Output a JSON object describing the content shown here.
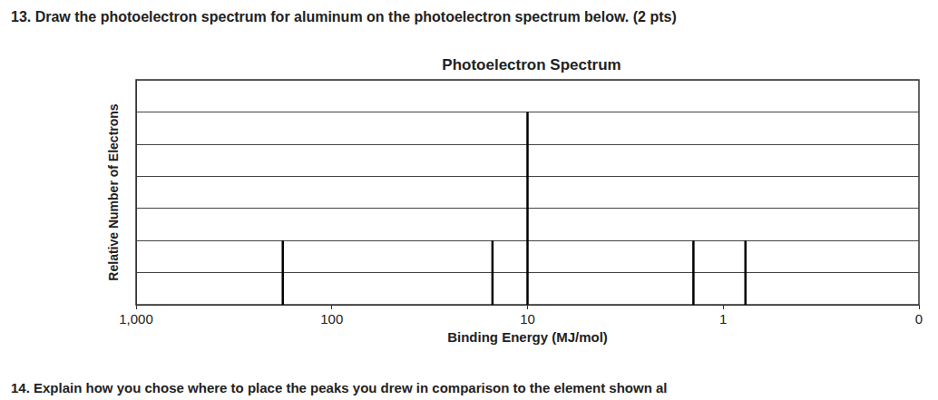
{
  "chart_data": {
    "type": "spectrum",
    "title": "Photoelectron Spectrum",
    "x_label": "Binding Energy (MJ/mol)",
    "y_label": "Relative Number of Electrons",
    "annotations": [
      "13. Draw the photoelectron spectrum for aluminum on the photoelectron spectrum below. (2 pts)",
      "14. Explain how you chose where to place the peaks you drew in comparison to the element shown al"
    ],
    "x": [
      178,
      15.1,
      10,
      1.42,
      0.77
    ],
    "values": [
      2,
      2,
      6,
      2,
      2
    ],
    "color": "#000000",
    "log": "x",
    "xlim": [
      1000,
      0.1
    ],
    "xticks": [
      {
        "value": 1000,
        "label": "1,000"
      },
      100,
      10,
      1,
      {
        "value": 0.1,
        "label": "0"
      }
    ],
    "ylim": [
      0,
      7
    ],
    "yticks": [
      0,
      1,
      2,
      3,
      4,
      5,
      6,
      7
    ],
    "grid": true,
    "tick_labels": "x"
  }
}
